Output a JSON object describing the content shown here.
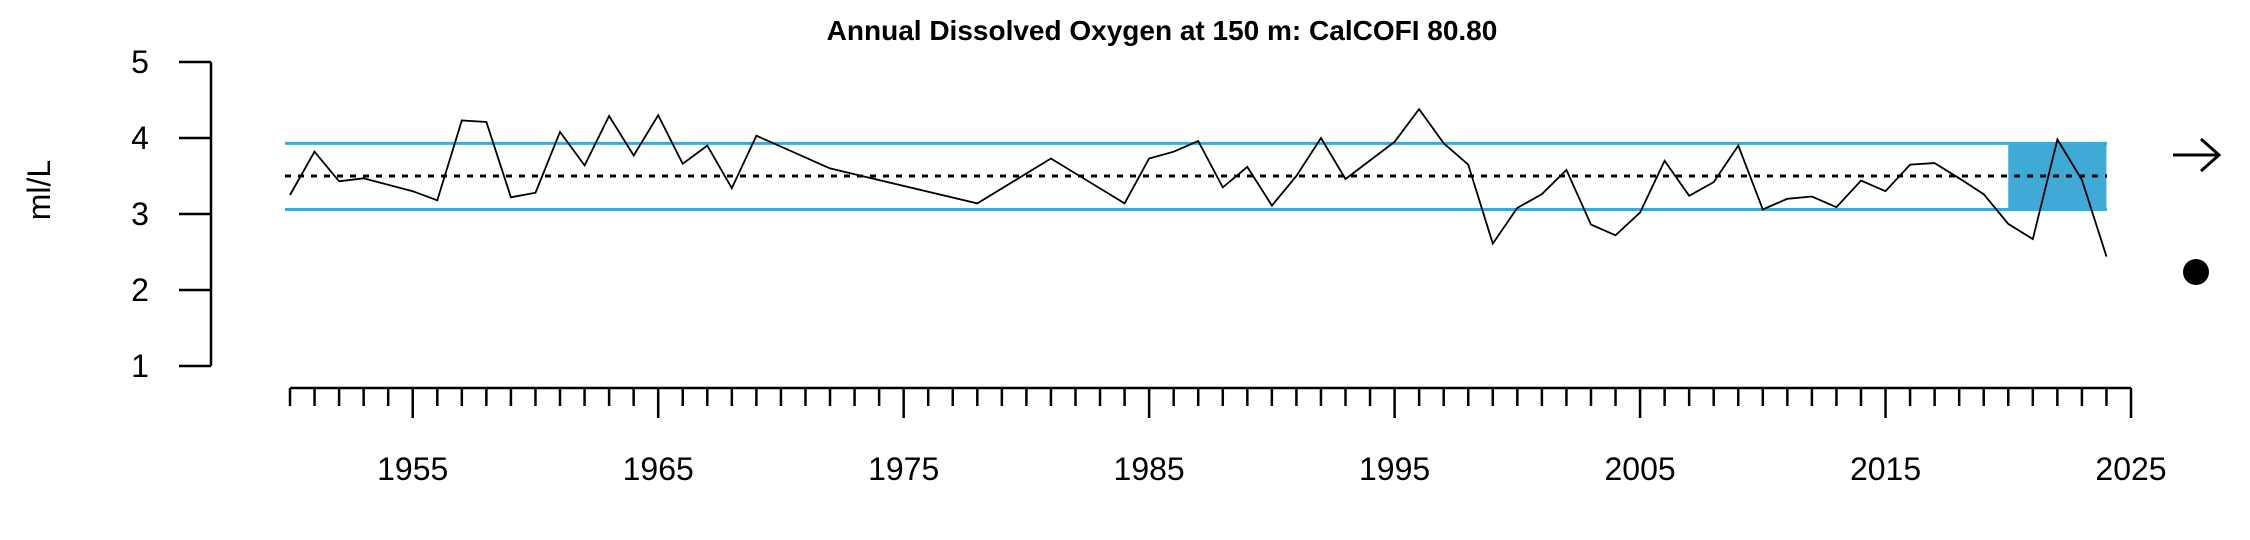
{
  "chart_data": {
    "type": "line",
    "title": "Annual Dissolved Oxygen at 150 m: CalCOFI 80.80",
    "ylabel": "ml/L",
    "xlabel": "",
    "xlim": [
      1950,
      2025
    ],
    "ylim": [
      1,
      5
    ],
    "y_ticks": [
      1,
      2,
      3,
      4,
      5
    ],
    "x_tick_labels": [
      1955,
      1965,
      1975,
      1985,
      1995,
      2005,
      2015,
      2025
    ],
    "x_minor_ticks_every": 1,
    "grid": false,
    "reference_lines": {
      "mean": 3.5,
      "upper_sd": 3.93,
      "lower_sd": 3.06,
      "mean_style": "dotted",
      "sd_color": "#3EA8D6"
    },
    "highlight_window": {
      "x": [
        2020,
        2024
      ],
      "y": [
        3.06,
        3.93
      ],
      "color": "#3FAAD6"
    },
    "trend_symbol": "arrow-right",
    "status_symbol": "filled-circle",
    "series": [
      {
        "color": "#000000",
        "x": [
          1950,
          1951,
          1952,
          1953,
          1955,
          1956,
          1957,
          1958,
          1959,
          1960,
          1961,
          1962,
          1963,
          1964,
          1965,
          1966,
          1967,
          1968,
          1969,
          1972,
          1978,
          1981,
          1984,
          1985,
          1986,
          1987,
          1988,
          1989,
          1990,
          1991,
          1992,
          1993,
          1995,
          1996,
          1997,
          1998,
          1999,
          2000,
          2001,
          2002,
          2003,
          2004,
          2005,
          2006,
          2007,
          2008,
          2009,
          2010,
          2011,
          2012,
          2013,
          2014,
          2015,
          2016,
          2017,
          2018,
          2019,
          2020,
          2021,
          2022,
          2023,
          2024
        ],
        "y": [
          3.25,
          3.82,
          3.43,
          3.47,
          3.3,
          3.18,
          4.23,
          4.21,
          3.22,
          3.28,
          4.08,
          3.64,
          4.29,
          3.77,
          4.3,
          3.66,
          3.9,
          3.34,
          4.03,
          3.6,
          3.14,
          3.73,
          3.14,
          3.73,
          3.82,
          3.96,
          3.35,
          3.62,
          3.11,
          3.5,
          4.0,
          3.46,
          3.95,
          4.38,
          3.93,
          3.65,
          2.61,
          3.08,
          3.26,
          3.58,
          2.86,
          2.72,
          3.02,
          3.7,
          3.24,
          3.42,
          3.9,
          3.06,
          3.2,
          3.23,
          3.09,
          3.44,
          3.3,
          3.65,
          3.67,
          3.47,
          3.26,
          2.87,
          2.67,
          3.98,
          3.45,
          2.44
        ]
      }
    ]
  }
}
